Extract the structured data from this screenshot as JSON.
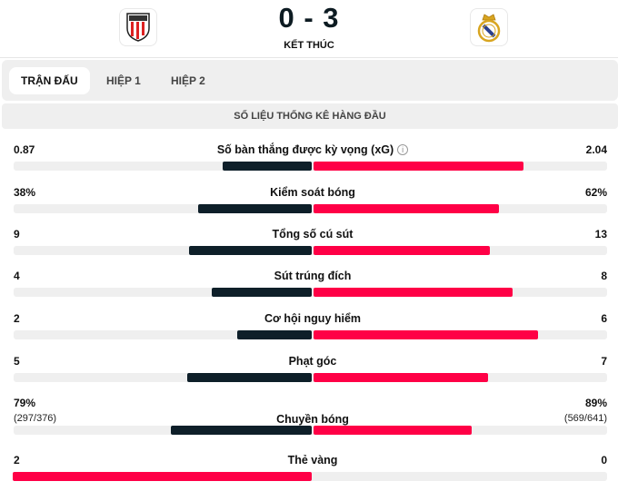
{
  "match": {
    "home_score": "0",
    "separator": "-",
    "away_score": "3",
    "score_text": "0 - 3",
    "status": "KẾT THÚC",
    "home_logo": "athletic-bilbao-crest",
    "away_logo": "real-madrid-crest"
  },
  "tabs": [
    {
      "label": "TRẬN ĐẤU",
      "active": true
    },
    {
      "label": "HIỆP 1",
      "active": false
    },
    {
      "label": "HIỆP 2",
      "active": false
    }
  ],
  "section_title": "SỐ LIỆU THỐNG KÊ HÀNG ĐẦU",
  "colors": {
    "higher": "#ff0046",
    "lower": "#0e1f29",
    "track": "#efefef"
  },
  "stats": [
    {
      "label": "Số bàn thắng được kỳ vọng (xG)",
      "home": "0.87",
      "away": "2.04",
      "home_value": 0.87,
      "away_value": 2.04,
      "info_icon": "info-icon"
    },
    {
      "label": "Kiểm soát bóng",
      "home": "38%",
      "away": "62%",
      "home_value": 38,
      "away_value": 62
    },
    {
      "label": "Tổng số cú sút",
      "home": "9",
      "away": "13",
      "home_value": 9,
      "away_value": 13
    },
    {
      "label": "Sút trúng đích",
      "home": "4",
      "away": "8",
      "home_value": 4,
      "away_value": 8
    },
    {
      "label": "Cơ hội nguy hiểm",
      "home": "2",
      "away": "6",
      "home_value": 2,
      "away_value": 6
    },
    {
      "label": "Phạt góc",
      "home": "5",
      "away": "7",
      "home_value": 5,
      "away_value": 7
    },
    {
      "label": "Chuyền bóng",
      "home": "79%",
      "away": "89%",
      "home_sub": "(297/376)",
      "away_sub": "(569/641)",
      "home_value": 79,
      "away_value": 89
    },
    {
      "label": "Thẻ vàng",
      "home": "2",
      "away": "0",
      "home_value": 2,
      "away_value": 0
    }
  ]
}
